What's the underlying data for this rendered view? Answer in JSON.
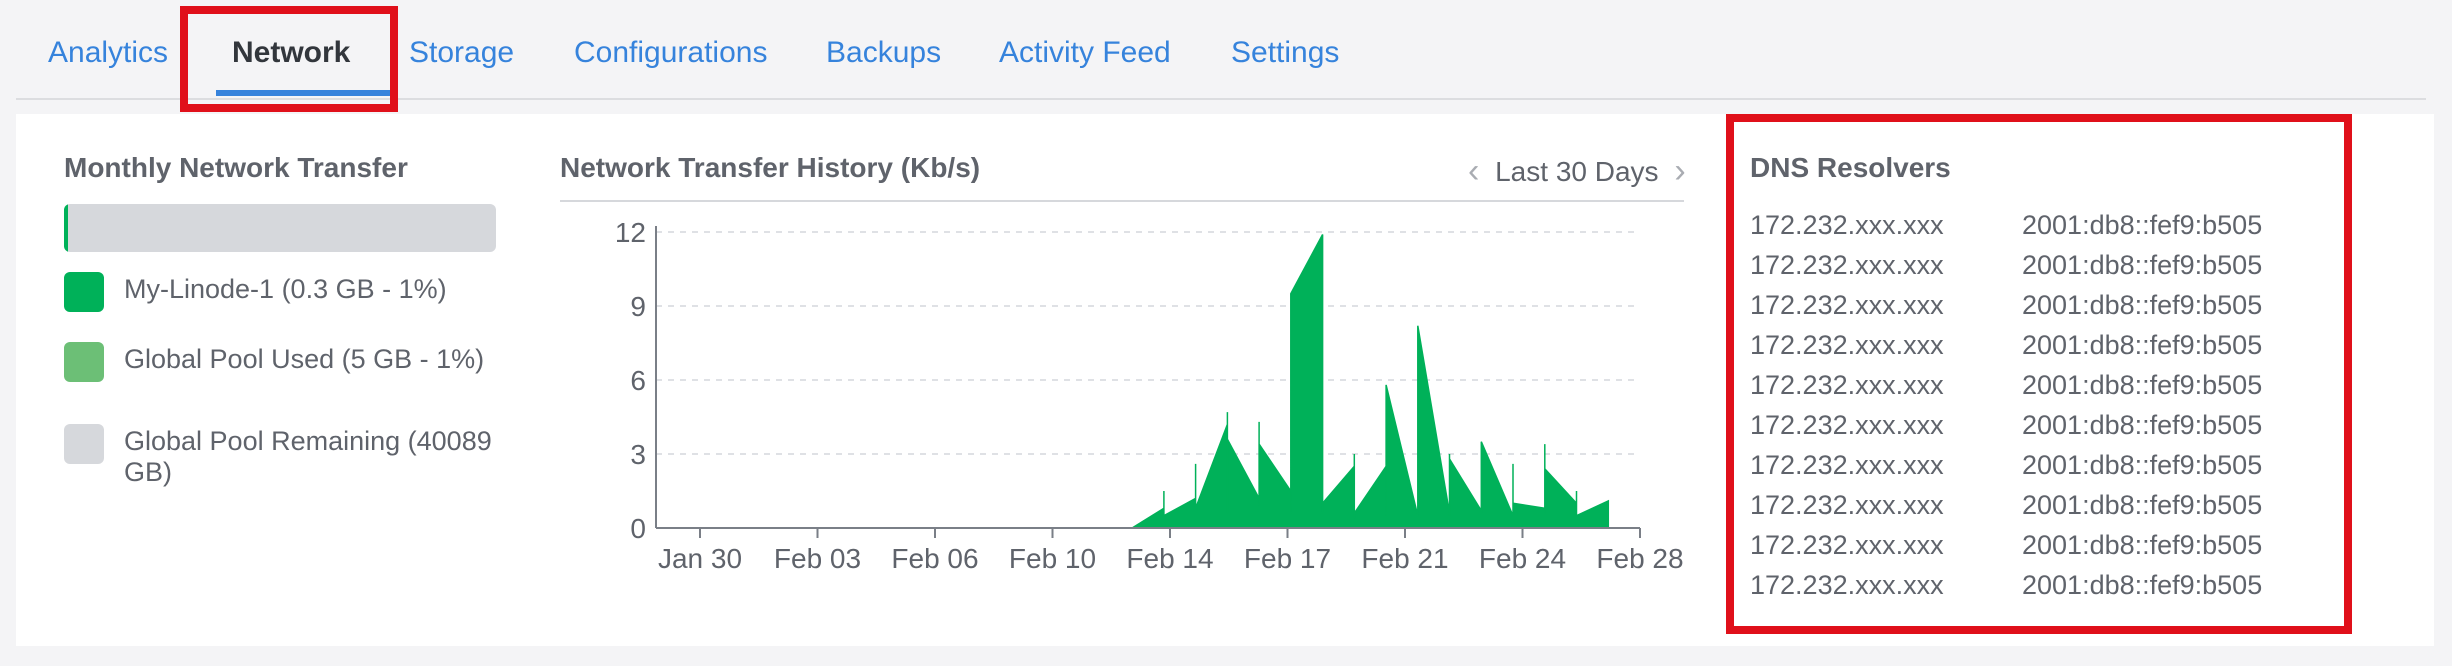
{
  "tabs": [
    {
      "label": "Analytics",
      "active": false
    },
    {
      "label": "Network",
      "active": true
    },
    {
      "label": "Storage",
      "active": false
    },
    {
      "label": "Configurations",
      "active": false
    },
    {
      "label": "Backups",
      "active": false
    },
    {
      "label": "Activity Feed",
      "active": false
    },
    {
      "label": "Settings",
      "active": false
    }
  ],
  "transfer": {
    "title": "Monthly Network Transfer",
    "used_fraction": 0.01,
    "legend": [
      {
        "label": "My-Linode-1 (0.3 GB - 1%)",
        "color": "#00b159"
      },
      {
        "label": "Global Pool Used (5 GB - 1%)",
        "color": "#6cbf76"
      },
      {
        "label": "Global Pool Remaining (40089 GB)",
        "color": "#d6d8dc"
      }
    ]
  },
  "history": {
    "title": "Network Transfer History (Kb/s)",
    "range_label": "Last 30 Days",
    "prev_icon": "chevron-left-icon",
    "next_icon": "chevron-right-icon"
  },
  "chart_data": {
    "type": "area",
    "title": "Network Transfer History (Kb/s)",
    "xlabel": "",
    "ylabel": "",
    "ylim": [
      0,
      12
    ],
    "yticks": [
      0,
      3,
      6,
      9,
      12
    ],
    "xlim": [
      "2019-01-28",
      "2019-02-28"
    ],
    "x_tick_labels": [
      "Jan 30",
      "Feb 03",
      "Feb 06",
      "Feb 10",
      "Feb 14",
      "Feb 17",
      "Feb 21",
      "Feb 24",
      "Feb 28"
    ],
    "grid": "horizontal-dashed",
    "color": "#00b159",
    "x": [
      "2019-01-28",
      "2019-02-12",
      "2019-02-13",
      "2019-02-13",
      "2019-02-13",
      "2019-02-14",
      "2019-02-14",
      "2019-02-14",
      "2019-02-15",
      "2019-02-15",
      "2019-02-15",
      "2019-02-15",
      "2019-02-15",
      "2019-02-16",
      "2019-02-16",
      "2019-02-16",
      "2019-02-16",
      "2019-02-17",
      "2019-02-17",
      "2019-02-17",
      "2019-02-17",
      "2019-02-18",
      "2019-02-18",
      "2019-02-18",
      "2019-02-18",
      "2019-02-19",
      "2019-02-19",
      "2019-02-19",
      "2019-02-19",
      "2019-02-20",
      "2019-02-20",
      "2019-02-20",
      "2019-02-21",
      "2019-02-21",
      "2019-02-21",
      "2019-02-21",
      "2019-02-22",
      "2019-02-22",
      "2019-02-22",
      "2019-02-22",
      "2019-02-23",
      "2019-02-23",
      "2019-02-23",
      "2019-02-23",
      "2019-02-24",
      "2019-02-24",
      "2019-02-24",
      "2019-02-25",
      "2019-02-25",
      "2019-02-25",
      "2019-02-25",
      "2019-02-26",
      "2019-02-26",
      "2019-02-26",
      "2019-02-27",
      "2019-02-27",
      "2019-02-27"
    ],
    "values": [
      0,
      0,
      0.8,
      1.5,
      0.5,
      1.2,
      2.6,
      0.8,
      4.2,
      1.5,
      4.7,
      0.6,
      3.6,
      1.2,
      4.3,
      0.9,
      3.4,
      1.5,
      4.0,
      0.6,
      9.5,
      11.9,
      0.6,
      8.4,
      1.0,
      2.5,
      0.4,
      3.0,
      0.6,
      2.5,
      0.5,
      5.8,
      0.5,
      2.3,
      0.7,
      8.2,
      0.6,
      3.0,
      0.5,
      2.8,
      0.7,
      3.3,
      0.8,
      3.5,
      0.5,
      2.6,
      1.0,
      0.8,
      3.4,
      0.6,
      2.4,
      1.0,
      1.5,
      0.5,
      1.1,
      0.4,
      0
    ]
  },
  "dns": {
    "title": "DNS Resolvers",
    "rows": [
      {
        "ipv4": "172.232.xxx.xxx",
        "ipv6": "2001:db8::fef9:b505"
      },
      {
        "ipv4": "172.232.xxx.xxx",
        "ipv6": "2001:db8::fef9:b505"
      },
      {
        "ipv4": "172.232.xxx.xxx",
        "ipv6": "2001:db8::fef9:b505"
      },
      {
        "ipv4": "172.232.xxx.xxx",
        "ipv6": "2001:db8::fef9:b505"
      },
      {
        "ipv4": "172.232.xxx.xxx",
        "ipv6": "2001:db8::fef9:b505"
      },
      {
        "ipv4": "172.232.xxx.xxx",
        "ipv6": "2001:db8::fef9:b505"
      },
      {
        "ipv4": "172.232.xxx.xxx",
        "ipv6": "2001:db8::fef9:b505"
      },
      {
        "ipv4": "172.232.xxx.xxx",
        "ipv6": "2001:db8::fef9:b505"
      },
      {
        "ipv4": "172.232.xxx.xxx",
        "ipv6": "2001:db8::fef9:b505"
      },
      {
        "ipv4": "172.232.xxx.xxx",
        "ipv6": "2001:db8::fef9:b505"
      }
    ]
  },
  "colors": {
    "accent": "#3683dc",
    "highlight": "#e0101a",
    "chart_fill": "#00b159"
  }
}
